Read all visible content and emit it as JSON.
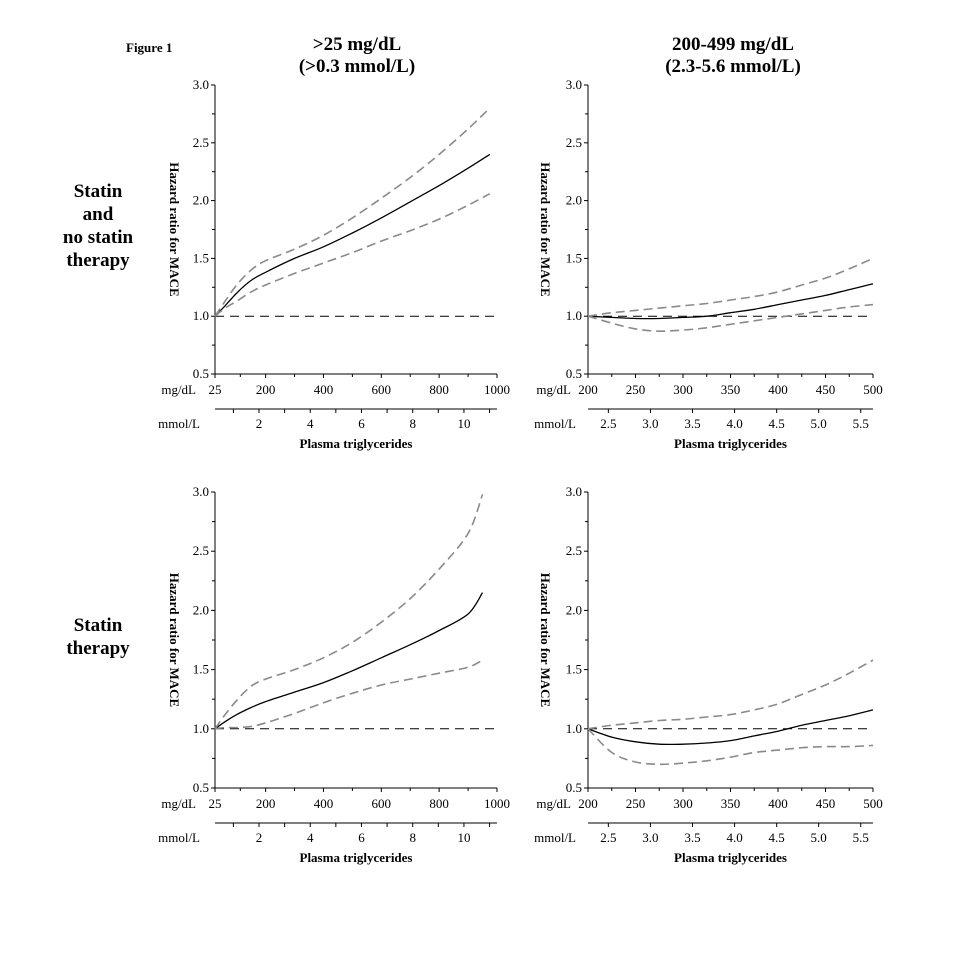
{
  "figure_label": "Figure 1",
  "columns": [
    {
      "title_line1": ">25 mg/dL",
      "title_line2": "(>0.3 mmol/L)"
    },
    {
      "title_line1": "200-499 mg/dL",
      "title_line2": "(2.3-5.6 mmol/L)"
    }
  ],
  "rows": [
    {
      "label_lines": [
        "Statin",
        "and",
        "no statin",
        "therapy"
      ]
    },
    {
      "label_lines": [
        "Statin",
        "therapy"
      ]
    }
  ],
  "chart_data": [
    {
      "type": "line",
      "row": 0,
      "col": 0,
      "ylabel": "Hazard ratio for MACE",
      "xlabel": "Plasma triglycerides",
      "x_unit_label": "mg/dL",
      "x2_unit_label": "mmol/L",
      "xlim": [
        25,
        1000
      ],
      "ylim": [
        0.5,
        3.0
      ],
      "yticks": [
        "0.5",
        "1.0",
        "1.5",
        "2.0",
        "2.5",
        "3.0"
      ],
      "xticks": [
        {
          "v": 25,
          "label": "25"
        },
        {
          "v": 200,
          "label": "200"
        },
        {
          "v": 400,
          "label": "400"
        },
        {
          "v": 600,
          "label": "600"
        },
        {
          "v": 800,
          "label": "800"
        },
        {
          "v": 1000,
          "label": "1000"
        }
      ],
      "x2ticks": [
        {
          "v": 88.6,
          "label": ""
        },
        {
          "v": 177.1,
          "label": "2"
        },
        {
          "v": 265.7,
          "label": ""
        },
        {
          "v": 354.3,
          "label": "4"
        },
        {
          "v": 442.8,
          "label": ""
        },
        {
          "v": 531.4,
          "label": "6"
        },
        {
          "v": 620,
          "label": ""
        },
        {
          "v": 708.6,
          "label": "8"
        },
        {
          "v": 797.1,
          "label": ""
        },
        {
          "v": 885.7,
          "label": "10"
        },
        {
          "v": 974.3,
          "label": ""
        }
      ],
      "reference": 1.0,
      "series": [
        {
          "role": "estimate",
          "x": [
            25,
            60,
            100,
            150,
            200,
            300,
            400,
            500,
            600,
            700,
            800,
            900,
            975
          ],
          "y": [
            1.0,
            1.09,
            1.2,
            1.31,
            1.38,
            1.5,
            1.6,
            1.72,
            1.85,
            1.99,
            2.13,
            2.28,
            2.4
          ]
        },
        {
          "role": "ci_upper",
          "x": [
            25,
            60,
            100,
            150,
            200,
            300,
            400,
            500,
            600,
            700,
            800,
            900,
            975
          ],
          "y": [
            1.0,
            1.13,
            1.27,
            1.4,
            1.48,
            1.58,
            1.7,
            1.85,
            2.02,
            2.2,
            2.4,
            2.62,
            2.8
          ]
        },
        {
          "role": "ci_lower",
          "x": [
            25,
            60,
            100,
            150,
            200,
            300,
            400,
            500,
            600,
            700,
            800,
            900,
            975
          ],
          "y": [
            1.0,
            1.07,
            1.13,
            1.21,
            1.27,
            1.37,
            1.46,
            1.55,
            1.65,
            1.74,
            1.84,
            1.96,
            2.06
          ]
        }
      ]
    },
    {
      "type": "line",
      "row": 0,
      "col": 1,
      "ylabel": "Hazard ratio for MACE",
      "xlabel": "Plasma triglycerides",
      "x_unit_label": "mg/dL",
      "x2_unit_label": "mmol/L",
      "xlim": [
        200,
        500
      ],
      "ylim": [
        0.5,
        3.0
      ],
      "yticks": [
        "0.5",
        "1.0",
        "1.5",
        "2.0",
        "2.5",
        "3.0"
      ],
      "xticks": [
        {
          "v": 200,
          "label": "200"
        },
        {
          "v": 250,
          "label": "250"
        },
        {
          "v": 300,
          "label": "300"
        },
        {
          "v": 350,
          "label": "350"
        },
        {
          "v": 400,
          "label": "400"
        },
        {
          "v": 450,
          "label": "450"
        },
        {
          "v": 500,
          "label": "500"
        }
      ],
      "x2ticks": [
        {
          "v": 221.4,
          "label": "2.5"
        },
        {
          "v": 265.7,
          "label": "3.0"
        },
        {
          "v": 310,
          "label": "3.5"
        },
        {
          "v": 354.3,
          "label": "4.0"
        },
        {
          "v": 398.6,
          "label": "4.5"
        },
        {
          "v": 442.8,
          "label": "5.0"
        },
        {
          "v": 487.1,
          "label": "5.5"
        }
      ],
      "reference": 1.0,
      "series": [
        {
          "role": "estimate",
          "x": [
            200,
            225,
            250,
            275,
            300,
            325,
            350,
            375,
            400,
            425,
            450,
            475,
            500
          ],
          "y": [
            1.0,
            0.99,
            0.98,
            0.98,
            0.99,
            1.0,
            1.03,
            1.06,
            1.1,
            1.14,
            1.18,
            1.23,
            1.28
          ]
        },
        {
          "role": "ci_upper",
          "x": [
            200,
            225,
            250,
            275,
            300,
            325,
            350,
            375,
            400,
            425,
            450,
            475,
            500
          ],
          "y": [
            1.0,
            1.03,
            1.05,
            1.07,
            1.09,
            1.11,
            1.14,
            1.17,
            1.21,
            1.27,
            1.33,
            1.41,
            1.5
          ]
        },
        {
          "role": "ci_lower",
          "x": [
            200,
            225,
            250,
            275,
            300,
            325,
            350,
            375,
            400,
            425,
            450,
            475,
            500
          ],
          "y": [
            1.0,
            0.94,
            0.89,
            0.87,
            0.88,
            0.9,
            0.93,
            0.96,
            0.99,
            1.02,
            1.05,
            1.08,
            1.1
          ]
        }
      ]
    },
    {
      "type": "line",
      "row": 1,
      "col": 0,
      "ylabel": "Hazard ratio for MACE",
      "xlabel": "Plasma triglycerides",
      "x_unit_label": "mg/dL",
      "x2_unit_label": "mmol/L",
      "xlim": [
        25,
        1000
      ],
      "ylim": [
        0.5,
        3.0
      ],
      "yticks": [
        "0.5",
        "1.0",
        "1.5",
        "2.0",
        "2.5",
        "3.0"
      ],
      "xticks": [
        {
          "v": 25,
          "label": "25"
        },
        {
          "v": 200,
          "label": "200"
        },
        {
          "v": 400,
          "label": "400"
        },
        {
          "v": 600,
          "label": "600"
        },
        {
          "v": 800,
          "label": "800"
        },
        {
          "v": 1000,
          "label": "1000"
        }
      ],
      "x2ticks": [
        {
          "v": 88.6,
          "label": ""
        },
        {
          "v": 177.1,
          "label": "2"
        },
        {
          "v": 265.7,
          "label": ""
        },
        {
          "v": 354.3,
          "label": "4"
        },
        {
          "v": 442.8,
          "label": ""
        },
        {
          "v": 531.4,
          "label": "6"
        },
        {
          "v": 620,
          "label": ""
        },
        {
          "v": 708.6,
          "label": "8"
        },
        {
          "v": 797.1,
          "label": ""
        },
        {
          "v": 885.7,
          "label": "10"
        },
        {
          "v": 974.3,
          "label": ""
        }
      ],
      "reference": 1.0,
      "series": [
        {
          "role": "estimate",
          "x": [
            25,
            60,
            100,
            150,
            200,
            300,
            400,
            500,
            600,
            700,
            800,
            900,
            950
          ],
          "y": [
            1.0,
            1.06,
            1.12,
            1.18,
            1.23,
            1.31,
            1.39,
            1.49,
            1.6,
            1.71,
            1.83,
            1.97,
            2.15
          ]
        },
        {
          "role": "ci_upper",
          "x": [
            25,
            60,
            100,
            150,
            200,
            300,
            400,
            500,
            600,
            700,
            800,
            900,
            950
          ],
          "y": [
            1.0,
            1.12,
            1.24,
            1.36,
            1.42,
            1.5,
            1.6,
            1.73,
            1.9,
            2.1,
            2.35,
            2.65,
            2.98
          ]
        },
        {
          "role": "ci_lower",
          "x": [
            25,
            60,
            100,
            150,
            200,
            300,
            400,
            500,
            600,
            700,
            800,
            900,
            950
          ],
          "y": [
            1.0,
            1.01,
            1.01,
            1.02,
            1.05,
            1.13,
            1.22,
            1.3,
            1.37,
            1.42,
            1.47,
            1.52,
            1.58
          ]
        }
      ]
    },
    {
      "type": "line",
      "row": 1,
      "col": 1,
      "ylabel": "Hazard ratio for MACE",
      "xlabel": "Plasma triglycerides",
      "x_unit_label": "mg/dL",
      "x2_unit_label": "mmol/L",
      "xlim": [
        200,
        500
      ],
      "ylim": [
        0.5,
        3.0
      ],
      "yticks": [
        "0.5",
        "1.0",
        "1.5",
        "2.0",
        "2.5",
        "3.0"
      ],
      "xticks": [
        {
          "v": 200,
          "label": "200"
        },
        {
          "v": 250,
          "label": "250"
        },
        {
          "v": 300,
          "label": "300"
        },
        {
          "v": 350,
          "label": "350"
        },
        {
          "v": 400,
          "label": "400"
        },
        {
          "v": 450,
          "label": "450"
        },
        {
          "v": 500,
          "label": "500"
        }
      ],
      "x2ticks": [
        {
          "v": 221.4,
          "label": "2.5"
        },
        {
          "v": 265.7,
          "label": "3.0"
        },
        {
          "v": 310,
          "label": "3.5"
        },
        {
          "v": 354.3,
          "label": "4.0"
        },
        {
          "v": 398.6,
          "label": "4.5"
        },
        {
          "v": 442.8,
          "label": "5.0"
        },
        {
          "v": 487.1,
          "label": "5.5"
        }
      ],
      "reference": 1.0,
      "series": [
        {
          "role": "estimate",
          "x": [
            200,
            225,
            250,
            275,
            300,
            325,
            350,
            375,
            400,
            425,
            450,
            475,
            500
          ],
          "y": [
            1.0,
            0.93,
            0.89,
            0.87,
            0.87,
            0.88,
            0.9,
            0.94,
            0.98,
            1.03,
            1.07,
            1.11,
            1.16
          ]
        },
        {
          "role": "ci_upper",
          "x": [
            200,
            225,
            250,
            275,
            300,
            325,
            350,
            375,
            400,
            425,
            450,
            475,
            500
          ],
          "y": [
            1.0,
            1.03,
            1.05,
            1.07,
            1.08,
            1.1,
            1.12,
            1.16,
            1.21,
            1.29,
            1.37,
            1.47,
            1.58
          ]
        },
        {
          "role": "ci_lower",
          "x": [
            200,
            225,
            250,
            275,
            300,
            325,
            350,
            375,
            400,
            425,
            450,
            475,
            500
          ],
          "y": [
            1.0,
            0.8,
            0.72,
            0.7,
            0.71,
            0.73,
            0.76,
            0.8,
            0.82,
            0.84,
            0.85,
            0.85,
            0.86
          ]
        }
      ]
    }
  ]
}
